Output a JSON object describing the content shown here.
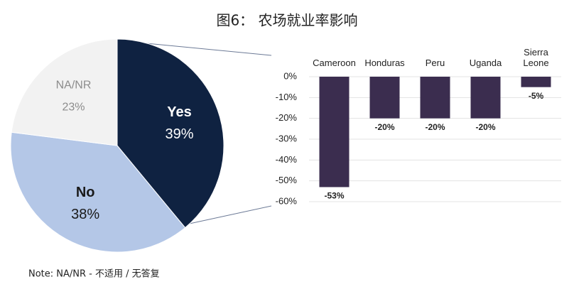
{
  "title": "图6： 农场就业率影响",
  "note": "Note: NA/NR - 不适用 / 无答复",
  "chart_data": [
    {
      "type": "pie",
      "categories": [
        "Yes",
        "No",
        "NA/NR"
      ],
      "values": [
        39,
        38,
        23
      ],
      "value_labels": [
        "39%",
        "38%",
        "23%"
      ],
      "colors": [
        "#0f2241",
        "#b4c7e7",
        "#f2f2f2"
      ]
    },
    {
      "type": "bar",
      "categories": [
        "Cameroon",
        "Honduras",
        "Peru",
        "Uganda",
        "Sierra Leone"
      ],
      "values": [
        -53,
        -20,
        -20,
        -20,
        -5
      ],
      "value_labels": [
        "-53%",
        "-20%",
        "-20%",
        "-20%",
        "-5%"
      ],
      "color": "#3b2d4f",
      "ylim": [
        -60,
        0
      ],
      "yticks": [
        {
          "value": 0,
          "label": "0%"
        },
        {
          "value": -10,
          "label": "-10%"
        },
        {
          "value": -20,
          "label": "-20%"
        },
        {
          "value": -30,
          "label": "-30%"
        },
        {
          "value": -40,
          "label": "-40%"
        },
        {
          "value": -50,
          "label": "-50%"
        },
        {
          "value": -60,
          "label": "-60%"
        }
      ],
      "grid": true
    }
  ]
}
